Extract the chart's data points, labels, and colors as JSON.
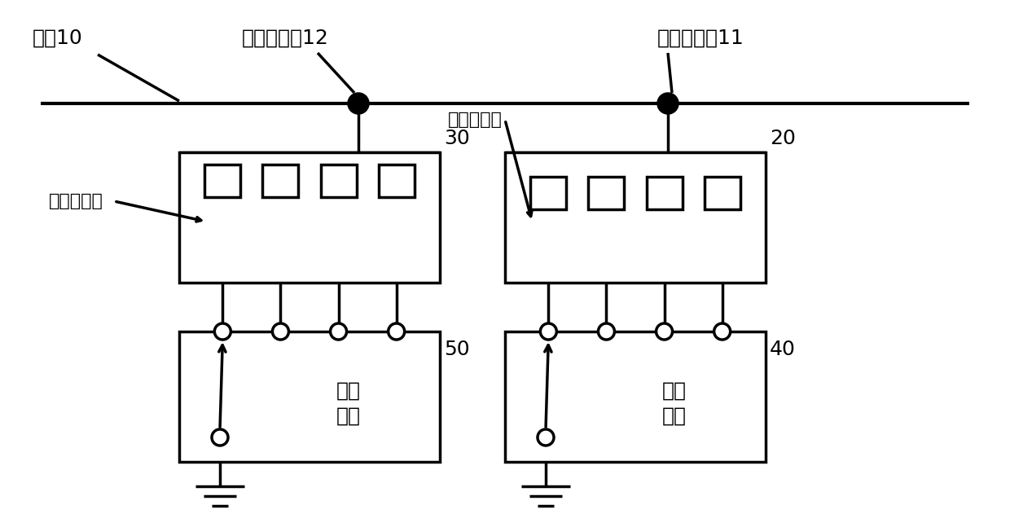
{
  "bg_color": "#ffffff",
  "line_color": "#000000",
  "line_width": 2.5,
  "antenna_label": "天线10",
  "feed_point1_label": "第一馈电点11",
  "feed_point2_label": "第二馈电点12",
  "match_circuit1_label": "匹配子电路",
  "match_circuit2_label": "匹配子电路",
  "switch1_label": "第一\n开关",
  "switch2_label": "第二\n开关",
  "ref1_label": "20",
  "ref2_label": "30",
  "ref3_label": "40",
  "ref4_label": "50",
  "font_size": 18,
  "font_size_label": 16
}
